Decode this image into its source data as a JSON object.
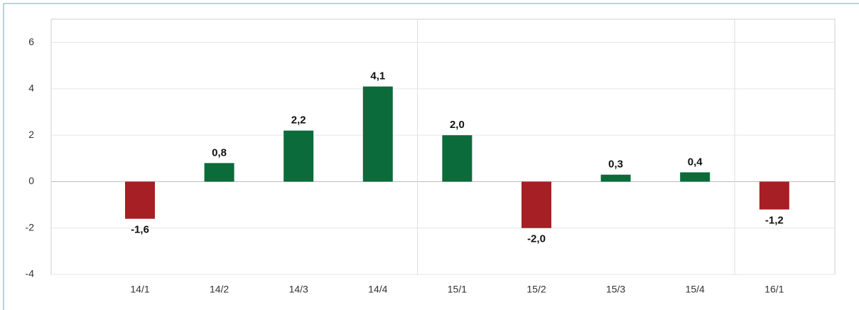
{
  "chart_data": {
    "type": "bar",
    "categories": [
      "14/1",
      "14/2",
      "14/3",
      "14/4",
      "15/1",
      "15/2",
      "15/3",
      "15/4",
      "16/1"
    ],
    "values": [
      -1.6,
      0.8,
      2.2,
      4.1,
      2.0,
      -2.0,
      0.3,
      0.4,
      -1.2
    ],
    "value_labels": [
      "-1,6",
      "0,8",
      "2,2",
      "4,1",
      "2,0",
      "-2,0",
      "0,3",
      "0,4",
      "-1,2"
    ],
    "colors": [
      "#a51f24",
      "#0b6b3a",
      "#0b6b3a",
      "#0b6b3a",
      "#0b6b3a",
      "#a51f24",
      "#0b6b3a",
      "#0b6b3a",
      "#a51f24"
    ],
    "ylim": [
      -4,
      7
    ],
    "yticks": [
      -4,
      -2,
      0,
      2,
      4,
      6
    ],
    "grid": true
  }
}
